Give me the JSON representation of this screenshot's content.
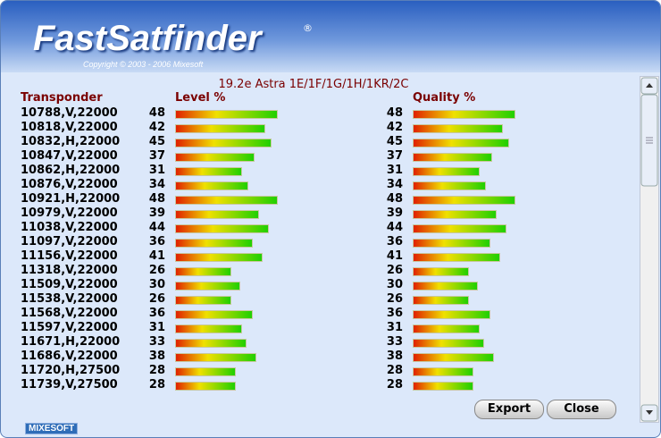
{
  "header": {
    "title": "FastSatfinder",
    "trademark": "®",
    "copyright": "Copyright © 2003 - 2006 Mixesoft"
  },
  "satellite": "19.2e Astra 1E/1F/1G/1H/1KR/2C",
  "table": {
    "columns": [
      "Transponder",
      "Level %",
      "Quality %"
    ],
    "rows": [
      [
        "10788,V,22000",
        48,
        48
      ],
      [
        "10818,V,22000",
        42,
        42
      ],
      [
        "10832,H,22000",
        45,
        45
      ],
      [
        "10847,V,22000",
        37,
        37
      ],
      [
        "10862,H,22000",
        31,
        31
      ],
      [
        "10876,V,22000",
        34,
        34
      ],
      [
        "10921,H,22000",
        48,
        48
      ],
      [
        "10979,V,22000",
        39,
        39
      ],
      [
        "11038,V,22000",
        44,
        44
      ],
      [
        "11097,V,22000",
        36,
        36
      ],
      [
        "11156,V,22000",
        41,
        41
      ],
      [
        "11318,V,22000",
        26,
        26
      ],
      [
        "11509,V,22000",
        30,
        30
      ],
      [
        "11538,V,22000",
        26,
        26
      ],
      [
        "11568,V,22000",
        36,
        36
      ],
      [
        "11597,V,22000",
        31,
        31
      ],
      [
        "11671,H,22000",
        33,
        33
      ],
      [
        "11686,V,22000",
        38,
        38
      ],
      [
        "11720,H,27500",
        28,
        28
      ],
      [
        "11739,V,27500",
        28,
        28
      ]
    ]
  },
  "buttons": [
    "Export",
    "Close"
  ],
  "logo": "MIXESOFT"
}
